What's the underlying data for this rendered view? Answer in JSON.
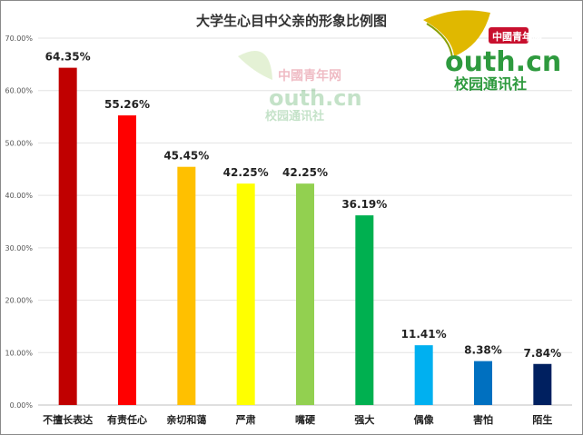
{
  "chart_data": {
    "type": "bar",
    "title": "大学生心目中父亲的形象比例图",
    "categories": [
      "不擅长表达",
      "有责任心",
      "亲切和蔼",
      "严肃",
      "嘴硬",
      "强大",
      "偶像",
      "害怕",
      "陌生"
    ],
    "values": [
      64.35,
      55.26,
      45.45,
      42.25,
      42.25,
      36.19,
      11.41,
      8.38,
      7.84
    ],
    "value_labels": [
      "64.35%",
      "55.26%",
      "45.45%",
      "42.25%",
      "42.25%",
      "36.19%",
      "11.41%",
      "8.38%",
      "7.84%"
    ],
    "colors": [
      "#c00000",
      "#ff0000",
      "#ffc000",
      "#ffff00",
      "#92d050",
      "#00b050",
      "#00b0f0",
      "#0070c0",
      "#002060"
    ],
    "y_ticks": [
      "0.00%",
      "10.00%",
      "20.00%",
      "30.00%",
      "40.00%",
      "50.00%",
      "60.00%",
      "70.00%"
    ],
    "ylim": [
      0,
      70
    ],
    "grid": true,
    "legend": "none"
  },
  "watermark": {
    "top": "中國青年网",
    "main": "outh.cn",
    "sub": "校园通讯社"
  }
}
